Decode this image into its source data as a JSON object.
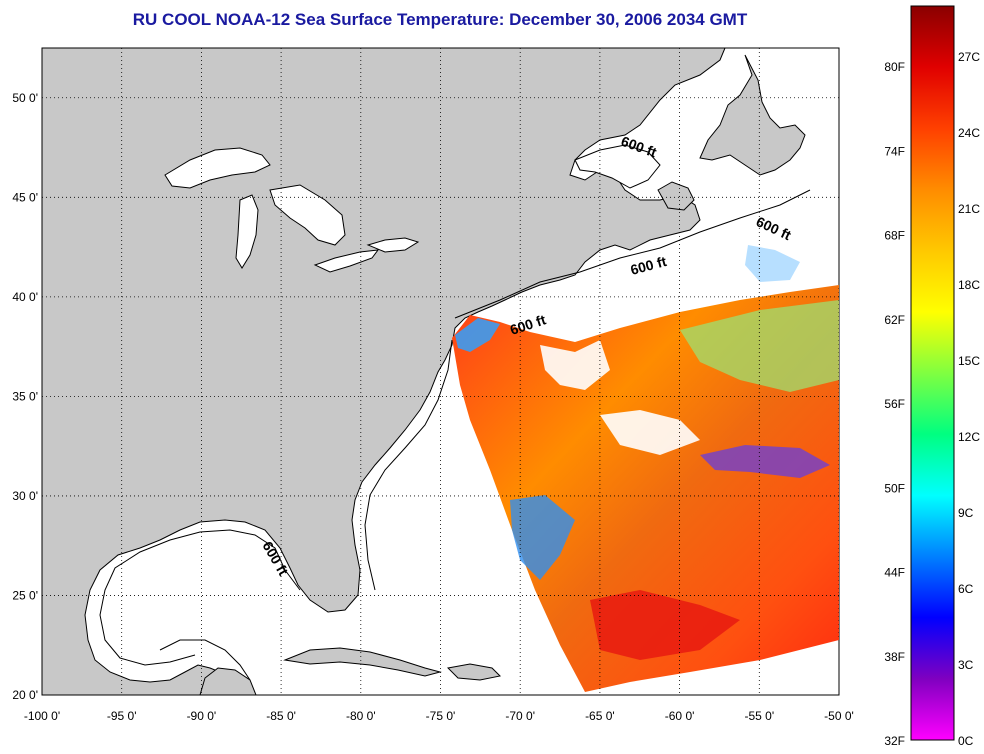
{
  "title": "RU COOL  NOAA-12  Sea Surface Temperature:  December 30, 2006 2034 GMT",
  "map": {
    "lon_range": [
      -100,
      -50
    ],
    "lat_range": [
      20,
      52.5
    ],
    "lon_ticks": [
      "-100 0'",
      "-95 0'",
      "-90 0'",
      "-85 0'",
      "-80 0'",
      "-75 0'",
      "-70 0'",
      "-65 0'",
      "-60 0'",
      "-55 0'",
      "-50 0'"
    ],
    "lat_ticks": [
      "20 0'",
      "25 0'",
      "30 0'",
      "35 0'",
      "40 0'",
      "45 0'",
      "50 0'"
    ],
    "contour_label": "600 ft",
    "colors": {
      "land": "#c8c8c8",
      "ocean_nodata": "#ffffff",
      "grid": "#000000"
    }
  },
  "colorbar": {
    "fahrenheit_labels": [
      "80F",
      "74F",
      "68F",
      "62F",
      "56F",
      "50F",
      "44F",
      "38F",
      "32F"
    ],
    "celsius_labels": [
      "27C",
      "24C",
      "21C",
      "18C",
      "15C",
      "12C",
      "9C",
      "6C",
      "3C",
      "0C"
    ],
    "colors_top_to_bottom": [
      "#8a0000",
      "#e00000",
      "#ff4000",
      "#ff8c00",
      "#ffc800",
      "#ffff00",
      "#80ff40",
      "#00ff80",
      "#00ffff",
      "#0080ff",
      "#0000ff",
      "#8000c0",
      "#ff00ff"
    ]
  }
}
